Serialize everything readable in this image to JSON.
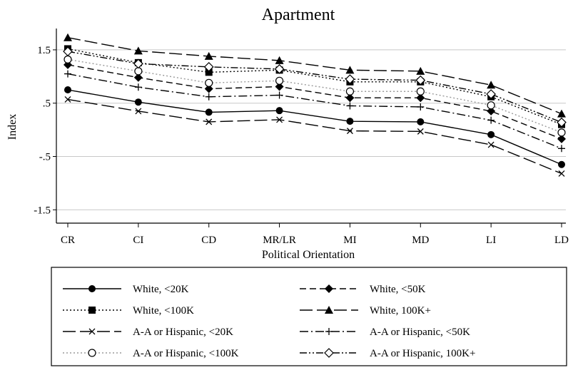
{
  "chart_data": {
    "type": "line",
    "title": "Apartment",
    "xlabel": "Political Orientation",
    "ylabel": "Index",
    "categories": [
      "CR",
      "CI",
      "CD",
      "MR/LR",
      "MI",
      "MD",
      "LI",
      "LD"
    ],
    "yticks": [
      "1.5",
      ".5",
      "-.5",
      "-1.5"
    ],
    "ytick_values": [
      1.5,
      0.5,
      -0.5,
      -1.5
    ],
    "ylim": [
      -1.75,
      1.9
    ],
    "grid": "horizontal",
    "legend_position": "bottom",
    "series": [
      {
        "name": "White, <20K",
        "marker": "circle-filled",
        "dash": "solid",
        "values": [
          0.75,
          0.52,
          0.33,
          0.36,
          0.16,
          0.15,
          -0.09,
          -0.65
        ]
      },
      {
        "name": "White, <50K",
        "marker": "diamond-filled",
        "dash": "dash",
        "values": [
          1.22,
          0.98,
          0.77,
          0.81,
          0.6,
          0.6,
          0.35,
          -0.17
        ]
      },
      {
        "name": "White, <100K",
        "marker": "square-filled",
        "dash": "dot",
        "values": [
          1.52,
          1.26,
          1.08,
          1.12,
          0.9,
          0.9,
          0.62,
          0.1
        ]
      },
      {
        "name": "White, 100K+",
        "marker": "triangle-filled",
        "dash": "longdash",
        "values": [
          1.73,
          1.48,
          1.38,
          1.3,
          1.12,
          1.1,
          0.84,
          0.3
        ]
      },
      {
        "name": "A-A or Hispanic, <20K",
        "marker": "x",
        "dash": "longdash",
        "values": [
          0.57,
          0.35,
          0.15,
          0.19,
          -0.02,
          -0.03,
          -0.28,
          -0.82
        ]
      },
      {
        "name": "A-A or Hispanic, <50K",
        "marker": "plus",
        "dash": "dashdot",
        "values": [
          1.05,
          0.8,
          0.62,
          0.65,
          0.45,
          0.43,
          0.18,
          -0.35
        ]
      },
      {
        "name": "A-A or Hispanic, <100K",
        "marker": "circle-open",
        "dash": "dot-light",
        "values": [
          1.32,
          1.1,
          0.88,
          0.92,
          0.72,
          0.72,
          0.46,
          -0.05
        ]
      },
      {
        "name": "A-A or Hispanic, 100K+",
        "marker": "diamond-open",
        "dash": "dashdotdot",
        "values": [
          1.47,
          1.24,
          1.18,
          1.14,
          0.95,
          0.93,
          0.67,
          0.14
        ]
      }
    ]
  },
  "colors": {
    "line": "#000000",
    "light_line": "#9a9a9a",
    "grid": "#c8c8c8",
    "background": "#ffffff"
  }
}
